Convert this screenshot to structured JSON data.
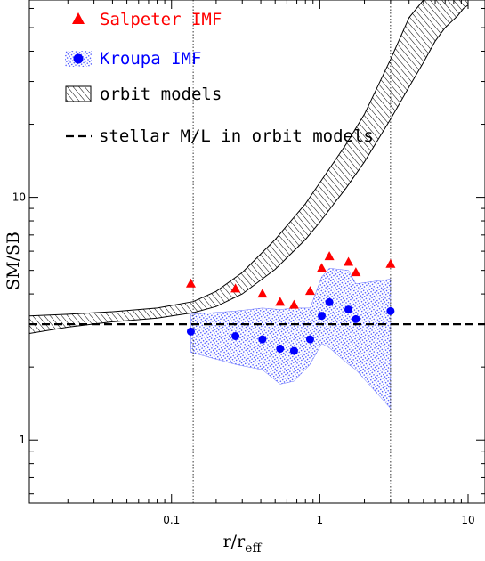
{
  "chart_data": {
    "type": "scatter",
    "xlabel_main": "r/r",
    "xlabel_sub": "eff",
    "ylabel": "SM/SB",
    "xscale": "log",
    "yscale": "log",
    "xlim": [
      0.011,
      13
    ],
    "ylim": [
      0.55,
      65
    ],
    "xticks": [
      {
        "value": 0.1,
        "label": "0.1"
      },
      {
        "value": 1,
        "label": "1"
      },
      {
        "value": 10,
        "label": "10"
      }
    ],
    "yticks": [
      {
        "value": 1,
        "label": "1"
      },
      {
        "value": 10,
        "label": "10"
      }
    ],
    "vlines": [
      0.14,
      3.0
    ],
    "hline": 3.0,
    "legend": {
      "position": "top-left",
      "entries": [
        {
          "label": "Salpeter IMF",
          "color": "#ff0000",
          "marker": "triangle"
        },
        {
          "label": "Kroupa IMF",
          "color": "#0000ff",
          "marker": "circle-with-band"
        },
        {
          "label": "orbit models",
          "color": "#000000",
          "marker": "hatched-box"
        },
        {
          "label": "stellar M/L in orbit models",
          "color": "#000000",
          "marker": "dashed-line"
        }
      ]
    },
    "series": [
      {
        "name": "Salpeter IMF",
        "color": "#ff0000",
        "marker": "triangle",
        "x": [
          0.135,
          0.27,
          0.41,
          0.54,
          0.67,
          0.86,
          1.03,
          1.16,
          1.56,
          1.75,
          3.0
        ],
        "y": [
          4.4,
          4.2,
          4.0,
          3.7,
          3.6,
          4.1,
          5.1,
          5.7,
          5.4,
          4.9,
          5.3
        ]
      },
      {
        "name": "Kroupa IMF",
        "color": "#0000ff",
        "marker": "circle",
        "x": [
          0.135,
          0.27,
          0.41,
          0.54,
          0.67,
          0.86,
          1.03,
          1.16,
          1.56,
          1.75,
          3.0
        ],
        "y": [
          2.8,
          2.68,
          2.6,
          2.38,
          2.33,
          2.6,
          3.25,
          3.7,
          3.45,
          3.15,
          3.4
        ]
      }
    ],
    "kroupa_band": {
      "x": [
        0.135,
        0.27,
        0.41,
        0.54,
        0.67,
        0.86,
        1.03,
        1.16,
        1.56,
        1.75,
        3.0
      ],
      "upper": [
        3.3,
        3.4,
        3.5,
        3.45,
        3.5,
        3.5,
        4.7,
        5.1,
        5.0,
        4.4,
        4.6
      ],
      "lower": [
        2.3,
        2.05,
        1.95,
        1.7,
        1.75,
        2.05,
        2.5,
        2.4,
        2.05,
        1.95,
        1.35
      ]
    },
    "orbit_band": {
      "x": [
        0.011,
        0.02,
        0.04,
        0.08,
        0.14,
        0.2,
        0.3,
        0.5,
        0.8,
        1.0,
        1.5,
        2.0,
        3.0,
        4.0,
        5.0,
        6.0,
        7.0,
        8.5,
        9.3,
        10
      ],
      "upper": [
        3.25,
        3.3,
        3.38,
        3.5,
        3.72,
        4.1,
        4.9,
        6.7,
        9.4,
        11.5,
        16.5,
        22,
        37,
        55,
        65,
        65,
        65,
        65,
        65,
        65
      ],
      "lower": [
        2.75,
        2.92,
        3.07,
        3.18,
        3.35,
        3.55,
        4.0,
        5.05,
        6.7,
        7.9,
        10.9,
        14.0,
        21.0,
        28.5,
        36,
        44,
        50,
        56,
        60,
        62
      ]
    }
  }
}
